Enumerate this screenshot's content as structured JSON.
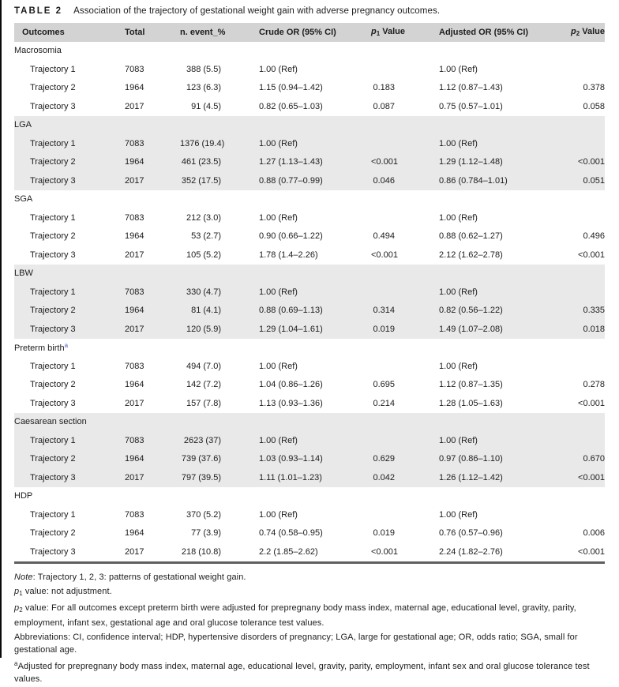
{
  "title": {
    "label": "TABLE 2",
    "caption": "Association of the trajectory of gestational weight gain with adverse pregnancy outcomes."
  },
  "colors": {
    "header_bg": "#d3d3d3",
    "shaded_band_bg": "#e9e9e9",
    "footnote_marker_blue": "#4c5fc0",
    "table_bottom_rule": "#5f5f5f"
  },
  "table": {
    "headers": {
      "outcomes": "Outcomes",
      "total": "Total",
      "n_event": "n. event_%",
      "crude": "Crude OR (95% CI)",
      "p1": {
        "sym": "p",
        "sub": "1",
        "rest": " Value"
      },
      "adjusted": "Adjusted OR (95% CI)",
      "p2": {
        "sym": "p",
        "sub": "2",
        "rest": " Value"
      }
    },
    "sections": [
      {
        "id": "macrosomia",
        "name": "Macrosomia",
        "sup": "",
        "shaded": false,
        "rows": [
          {
            "label": "Trajectory 1",
            "total": "7083",
            "n_event": "388 (5.5)",
            "crude": "1.00 (Ref)",
            "p1": "",
            "adjusted": "1.00 (Ref)",
            "p2": ""
          },
          {
            "label": "Trajectory 2",
            "total": "1964",
            "n_event": "123 (6.3)",
            "crude": "1.15 (0.94–1.42)",
            "p1": "0.183",
            "adjusted": "1.12 (0.87–1.43)",
            "p2": "0.378"
          },
          {
            "label": "Trajectory 3",
            "total": "2017",
            "n_event": "91 (4.5)",
            "crude": "0.82 (0.65–1.03)",
            "p1": "0.087",
            "adjusted": "0.75 (0.57–1.01)",
            "p2": "0.058"
          }
        ]
      },
      {
        "id": "lga",
        "name": "LGA",
        "sup": "",
        "shaded": true,
        "rows": [
          {
            "label": "Trajectory 1",
            "total": "7083",
            "n_event": "1376 (19.4)",
            "crude": "1.00 (Ref)",
            "p1": "",
            "adjusted": "1.00 (Ref)",
            "p2": ""
          },
          {
            "label": "Trajectory 2",
            "total": "1964",
            "n_event": "461 (23.5)",
            "crude": "1.27 (1.13–1.43)",
            "p1": "<0.001",
            "adjusted": "1.29 (1.12–1.48)",
            "p2": "<0.001"
          },
          {
            "label": "Trajectory 3",
            "total": "2017",
            "n_event": "352 (17.5)",
            "crude": "0.88 (0.77–0.99)",
            "p1": "0.046",
            "adjusted": "0.86 (0.784–1.01)",
            "p2": "0.051"
          }
        ]
      },
      {
        "id": "sga",
        "name": "SGA",
        "sup": "",
        "shaded": false,
        "rows": [
          {
            "label": "Trajectory 1",
            "total": "7083",
            "n_event": "212 (3.0)",
            "crude": "1.00 (Ref)",
            "p1": "",
            "adjusted": "1.00 (Ref)",
            "p2": ""
          },
          {
            "label": "Trajectory 2",
            "total": "1964",
            "n_event": "53 (2.7)",
            "crude": "0.90 (0.66–1.22)",
            "p1": "0.494",
            "adjusted": "0.88 (0.62–1.27)",
            "p2": "0.496"
          },
          {
            "label": "Trajectory 3",
            "total": "2017",
            "n_event": "105 (5.2)",
            "crude": "1.78 (1.4–2.26)",
            "p1": "<0.001",
            "adjusted": "2.12 (1.62–2.78)",
            "p2": "<0.001"
          }
        ]
      },
      {
        "id": "lbw",
        "name": "LBW",
        "sup": "",
        "shaded": true,
        "rows": [
          {
            "label": "Trajectory 1",
            "total": "7083",
            "n_event": "330 (4.7)",
            "crude": "1.00 (Ref)",
            "p1": "",
            "adjusted": "1.00 (Ref)",
            "p2": ""
          },
          {
            "label": "Trajectory 2",
            "total": "1964",
            "n_event": "81 (4.1)",
            "crude": "0.88 (0.69–1.13)",
            "p1": "0.314",
            "adjusted": "0.82 (0.56–1.22)",
            "p2": "0.335"
          },
          {
            "label": "Trajectory 3",
            "total": "2017",
            "n_event": "120 (5.9)",
            "crude": "1.29 (1.04–1.61)",
            "p1": "0.019",
            "adjusted": "1.49 (1.07–2.08)",
            "p2": "0.018"
          }
        ]
      },
      {
        "id": "preterm-birth",
        "name": "Preterm birth",
        "sup": "a",
        "shaded": false,
        "rows": [
          {
            "label": "Trajectory 1",
            "total": "7083",
            "n_event": "494 (7.0)",
            "crude": "1.00 (Ref)",
            "p1": "",
            "adjusted": "1.00 (Ref)",
            "p2": ""
          },
          {
            "label": "Trajectory 2",
            "total": "1964",
            "n_event": "142 (7.2)",
            "crude": "1.04 (0.86–1.26)",
            "p1": "0.695",
            "adjusted": "1.12 (0.87–1.35)",
            "p2": "0.278"
          },
          {
            "label": "Trajectory 3",
            "total": "2017",
            "n_event": "157 (7.8)",
            "crude": "1.13 (0.93–1.36)",
            "p1": "0.214",
            "adjusted": "1.28 (1.05–1.63)",
            "p2": "<0.001"
          }
        ]
      },
      {
        "id": "caesarean-section",
        "name": "Caesarean section",
        "sup": "",
        "shaded": true,
        "rows": [
          {
            "label": "Trajectory 1",
            "total": "7083",
            "n_event": "2623 (37)",
            "crude": "1.00 (Ref)",
            "p1": "",
            "adjusted": "1.00 (Ref)",
            "p2": ""
          },
          {
            "label": "Trajectory 2",
            "total": "1964",
            "n_event": "739 (37.6)",
            "crude": "1.03 (0.93–1.14)",
            "p1": "0.629",
            "adjusted": "0.97 (0.86–1.10)",
            "p2": "0.670"
          },
          {
            "label": "Trajectory 3",
            "total": "2017",
            "n_event": "797 (39.5)",
            "crude": "1.11 (1.01–1.23)",
            "p1": "0.042",
            "adjusted": "1.26 (1.12–1.42)",
            "p2": "<0.001"
          }
        ]
      },
      {
        "id": "hdp",
        "name": "HDP",
        "sup": "",
        "shaded": false,
        "rows": [
          {
            "label": "Trajectory 1",
            "total": "7083",
            "n_event": "370 (5.2)",
            "crude": "1.00 (Ref)",
            "p1": "",
            "adjusted": "1.00 (Ref)",
            "p2": ""
          },
          {
            "label": "Trajectory 2",
            "total": "1964",
            "n_event": "77 (3.9)",
            "crude": "0.74 (0.58–0.95)",
            "p1": "0.019",
            "adjusted": "0.76 (0.57–0.96)",
            "p2": "0.006"
          },
          {
            "label": "Trajectory 3",
            "total": "2017",
            "n_event": "218 (10.8)",
            "crude": "2.2 (1.85–2.62)",
            "p1": "<0.001",
            "adjusted": "2.24 (1.82–2.76)",
            "p2": "<0.001"
          }
        ]
      }
    ]
  },
  "footnotes": {
    "note_label": "Note",
    "note_rest": ": Trajectory 1, 2, 3: patterns of gestational weight gain.",
    "p1_sym": "p",
    "p1_sub": "1",
    "p1_rest": " value: not adjustment.",
    "p2_sym": "p",
    "p2_sub": "2",
    "p2_rest": " value: For all outcomes except preterm birth were adjusted for prepregnany body mass index, maternal age, educational level, gravity, parity, employment, infant sex, gestational age and oral glucose tolerance test values.",
    "abbreviations": "Abbreviations: CI, confidence interval; HDP, hypertensive disorders of pregnancy; LGA, large for gestational age; OR, odds ratio; SGA, small for gestational age.",
    "a_sup": "a",
    "a_rest": "Adjusted for prepregnany body mass index, maternal age, educational level, gravity, parity, employment, infant sex and oral glucose tolerance test values."
  }
}
